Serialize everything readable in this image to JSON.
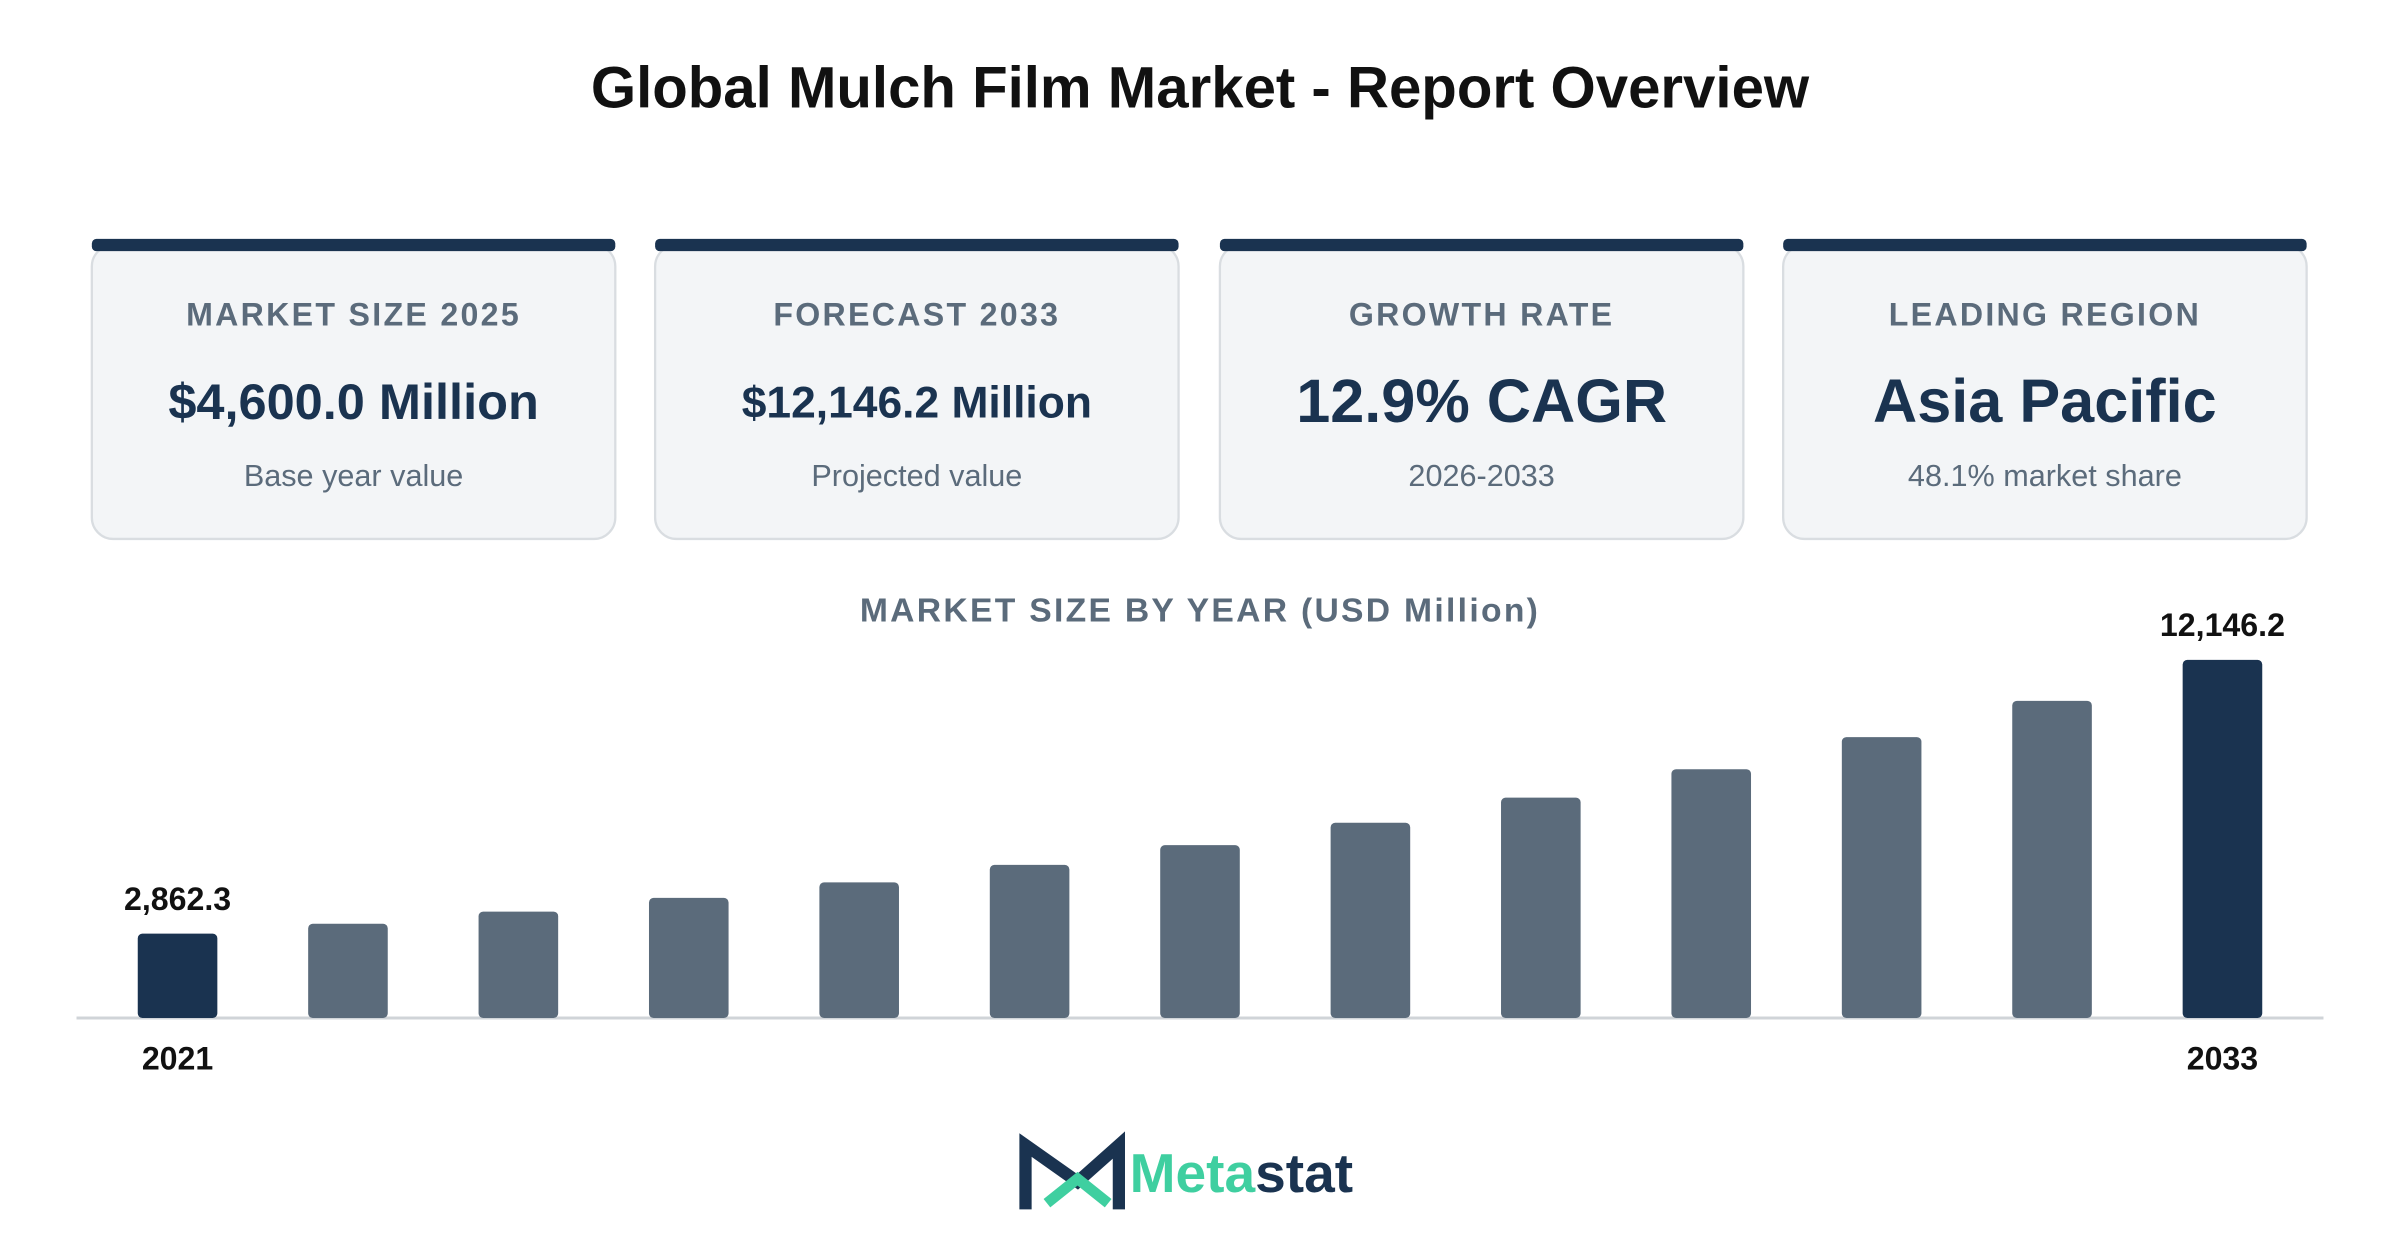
{
  "title": "Global Mulch Film Market - Report Overview",
  "cards": [
    {
      "label": "MARKET SIZE 2025",
      "value": "$4,600.0 Million",
      "note": "Base year value"
    },
    {
      "label": "FORECAST 2033",
      "value": "$12,146.2 Million",
      "note": "Projected value"
    },
    {
      "label": "GROWTH RATE",
      "value": "12.9% CAGR",
      "note": "2026-2033"
    },
    {
      "label": "LEADING REGION",
      "value": "Asia Pacific",
      "note": "48.1% market share"
    }
  ],
  "chart_data": {
    "type": "bar",
    "title": "MARKET SIZE BY YEAR (USD Million)",
    "categories": [
      "2021",
      null,
      null,
      null,
      null,
      null,
      null,
      null,
      null,
      null,
      null,
      null,
      "2033"
    ],
    "values": [
      2862.3,
      3197,
      3609,
      4074,
      4600,
      5193,
      5863,
      6620,
      7474,
      8438,
      9527,
      10756,
      12146.2
    ],
    "value_labels": [
      "2,862.3",
      null,
      null,
      null,
      null,
      null,
      null,
      null,
      null,
      null,
      null,
      null,
      "12,146.2"
    ],
    "color": "#5b6b7b",
    "highlight_color": "#1a3350"
  },
  "logo": {
    "prefix": "Meta",
    "suffix": "stat"
  }
}
